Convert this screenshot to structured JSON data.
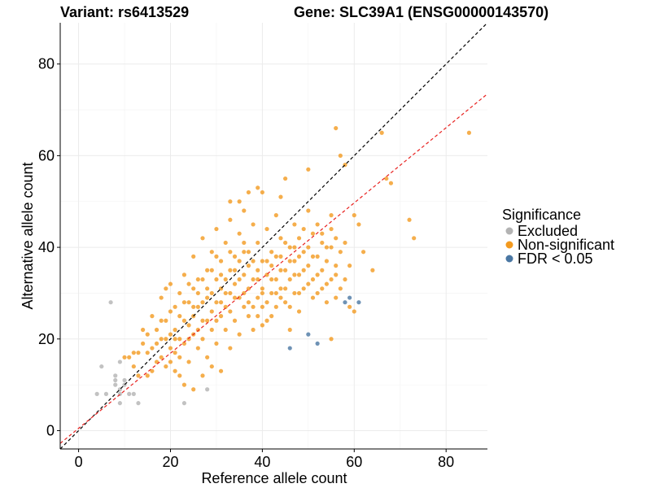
{
  "chart_data": {
    "type": "scatter",
    "title_left": "Variant: rs6413529",
    "title_right": "Gene: SLC39A1 (ENSG00000143570)",
    "xlabel": "Reference allele count",
    "ylabel": "Alternative allele count",
    "xlim": [
      -4,
      89
    ],
    "ylim": [
      -4,
      89
    ],
    "x_ticks": [
      0,
      20,
      40,
      60,
      80
    ],
    "y_ticks": [
      0,
      20,
      40,
      60,
      80
    ],
    "grid": true,
    "legend": {
      "title": "Significance",
      "placement": "right",
      "entries": [
        {
          "label": "Excluded",
          "color": "#b3b3b3"
        },
        {
          "label": "Non-significant",
          "color": "#f39a1f"
        },
        {
          "label": "FDR < 0.05",
          "color": "#4a77a3"
        }
      ]
    },
    "reference_lines": [
      {
        "name": "identity",
        "slope": 1,
        "intercept": 0,
        "color": "#000000",
        "dashed": true
      },
      {
        "name": "fit",
        "slope": 0.82,
        "intercept": 0.5,
        "color": "#e8211f",
        "dashed": true
      }
    ],
    "series": [
      {
        "name": "Excluded",
        "color": "#b3b3b3",
        "points": [
          [
            4,
            8
          ],
          [
            5,
            14
          ],
          [
            6,
            8
          ],
          [
            7,
            28
          ],
          [
            8,
            10
          ],
          [
            8,
            11
          ],
          [
            8,
            12
          ],
          [
            9,
            6
          ],
          [
            9,
            8
          ],
          [
            9,
            9
          ],
          [
            9,
            15
          ],
          [
            10,
            10
          ],
          [
            10,
            11
          ],
          [
            11,
            8
          ],
          [
            12,
            8
          ],
          [
            13,
            6
          ],
          [
            23,
            6
          ],
          [
            28,
            9
          ]
        ]
      },
      {
        "name": "FDR < 0.05",
        "color": "#4a77a3",
        "points": [
          [
            46,
            18
          ],
          [
            50,
            21
          ],
          [
            52,
            19
          ],
          [
            58,
            28
          ],
          [
            59,
            29
          ],
          [
            61,
            28
          ]
        ]
      },
      {
        "name": "Non-significant",
        "color": "#f39a1f",
        "points": [
          [
            10,
            16
          ],
          [
            11,
            16
          ],
          [
            12,
            14
          ],
          [
            13,
            12
          ],
          [
            13,
            17
          ],
          [
            14,
            19
          ],
          [
            15,
            12
          ],
          [
            15,
            21
          ],
          [
            16,
            18
          ],
          [
            16,
            13
          ],
          [
            17,
            22
          ],
          [
            18,
            16
          ],
          [
            18,
            24
          ],
          [
            18,
            29
          ],
          [
            19,
            20
          ],
          [
            19,
            14
          ],
          [
            20,
            26
          ],
          [
            20,
            32
          ],
          [
            20,
            18
          ],
          [
            21,
            22
          ],
          [
            21,
            17
          ],
          [
            22,
            30
          ],
          [
            22,
            25
          ],
          [
            22,
            12
          ],
          [
            23,
            19
          ],
          [
            23,
            34
          ],
          [
            24,
            28
          ],
          [
            24,
            23
          ],
          [
            24,
            15
          ],
          [
            25,
            31
          ],
          [
            25,
            21
          ],
          [
            25,
            38
          ],
          [
            26,
            27
          ],
          [
            26,
            18
          ],
          [
            26,
            33
          ],
          [
            27,
            24
          ],
          [
            27,
            42
          ],
          [
            27,
            20
          ],
          [
            28,
            29
          ],
          [
            28,
            35
          ],
          [
            28,
            16
          ],
          [
            29,
            26
          ],
          [
            29,
            39
          ],
          [
            29,
            22
          ],
          [
            30,
            33
          ],
          [
            30,
            28
          ],
          [
            30,
            44
          ],
          [
            30,
            19
          ],
          [
            31,
            31
          ],
          [
            31,
            25
          ],
          [
            31,
            37
          ],
          [
            32,
            27
          ],
          [
            32,
            41
          ],
          [
            32,
            22
          ],
          [
            33,
            35
          ],
          [
            33,
            30
          ],
          [
            33,
            46
          ],
          [
            33,
            18
          ],
          [
            34,
            32
          ],
          [
            34,
            24
          ],
          [
            34,
            38
          ],
          [
            35,
            29
          ],
          [
            35,
            43
          ],
          [
            35,
            21
          ],
          [
            36,
            34
          ],
          [
            36,
            27
          ],
          [
            36,
            48
          ],
          [
            36,
            39
          ],
          [
            37,
            31
          ],
          [
            37,
            25
          ],
          [
            37,
            36
          ],
          [
            38,
            33
          ],
          [
            38,
            45
          ],
          [
            38,
            22
          ],
          [
            39,
            29
          ],
          [
            39,
            41
          ],
          [
            39,
            35
          ],
          [
            40,
            37
          ],
          [
            40,
            27
          ],
          [
            40,
            52
          ],
          [
            40,
            31
          ],
          [
            41,
            34
          ],
          [
            41,
            44
          ],
          [
            41,
            24
          ],
          [
            42,
            30
          ],
          [
            42,
            39
          ],
          [
            42,
            36
          ],
          [
            43,
            33
          ],
          [
            43,
            47
          ],
          [
            43,
            27
          ],
          [
            44,
            38
          ],
          [
            44,
            31
          ],
          [
            44,
            42
          ],
          [
            45,
            35
          ],
          [
            45,
            28
          ],
          [
            45,
            55
          ],
          [
            46,
            40
          ],
          [
            46,
            33
          ],
          [
            46,
            22
          ],
          [
            47,
            37
          ],
          [
            47,
            45
          ],
          [
            47,
            30
          ],
          [
            48,
            34
          ],
          [
            48,
            42
          ],
          [
            48,
            26
          ],
          [
            49,
            39
          ],
          [
            49,
            31
          ],
          [
            50,
            36
          ],
          [
            50,
            48
          ],
          [
            50,
            57
          ],
          [
            51,
            33
          ],
          [
            51,
            43
          ],
          [
            52,
            38
          ],
          [
            52,
            30
          ],
          [
            53,
            41
          ],
          [
            53,
            35
          ],
          [
            54,
            37
          ],
          [
            54,
            32
          ],
          [
            55,
            40
          ],
          [
            55,
            44
          ],
          [
            56,
            36
          ],
          [
            56,
            34
          ],
          [
            57,
            39
          ],
          [
            58,
            41
          ],
          [
            58,
            58
          ],
          [
            59,
            36
          ],
          [
            60,
            47
          ],
          [
            62,
            39
          ],
          [
            64,
            35
          ],
          [
            66,
            65
          ],
          [
            67,
            55
          ],
          [
            68,
            54
          ],
          [
            72,
            46
          ],
          [
            73,
            42
          ],
          [
            85,
            65
          ],
          [
            19,
            31
          ],
          [
            21,
            13
          ],
          [
            23,
            10
          ],
          [
            25,
            9
          ],
          [
            27,
            12
          ],
          [
            29,
            14
          ],
          [
            31,
            13
          ],
          [
            33,
            50
          ],
          [
            35,
            50
          ],
          [
            37,
            52
          ],
          [
            39,
            53
          ],
          [
            44,
            51
          ],
          [
            55,
            20
          ],
          [
            56,
            66
          ],
          [
            57,
            60
          ],
          [
            59,
            27
          ],
          [
            60,
            26
          ],
          [
            61,
            45
          ],
          [
            14,
            22
          ],
          [
            16,
            25
          ],
          [
            17,
            19
          ],
          [
            19,
            24
          ],
          [
            20,
            21
          ],
          [
            21,
            27
          ],
          [
            22,
            20
          ],
          [
            23,
            24
          ],
          [
            24,
            20
          ],
          [
            25,
            25
          ],
          [
            26,
            22
          ],
          [
            27,
            28
          ],
          [
            28,
            24
          ],
          [
            29,
            30
          ],
          [
            30,
            24
          ],
          [
            31,
            28
          ],
          [
            32,
            33
          ],
          [
            33,
            26
          ],
          [
            34,
            29
          ],
          [
            35,
            33
          ],
          [
            36,
            30
          ],
          [
            37,
            28
          ],
          [
            38,
            37
          ],
          [
            39,
            33
          ],
          [
            40,
            30
          ],
          [
            41,
            37
          ],
          [
            42,
            33
          ],
          [
            43,
            38
          ],
          [
            44,
            35
          ],
          [
            45,
            41
          ],
          [
            46,
            37
          ],
          [
            47,
            40
          ],
          [
            48,
            38
          ],
          [
            49,
            44
          ],
          [
            50,
            40
          ],
          [
            51,
            38
          ],
          [
            52,
            45
          ],
          [
            53,
            43
          ],
          [
            54,
            40
          ],
          [
            55,
            47
          ],
          [
            56,
            42
          ],
          [
            12,
            17
          ],
          [
            15,
            17
          ],
          [
            17,
            15
          ],
          [
            18,
            20
          ],
          [
            20,
            15
          ],
          [
            21,
            20
          ],
          [
            22,
            16
          ],
          [
            23,
            28
          ],
          [
            24,
            32
          ],
          [
            25,
            27
          ],
          [
            26,
            30
          ],
          [
            27,
            33
          ],
          [
            28,
            31
          ],
          [
            29,
            35
          ],
          [
            30,
            38
          ],
          [
            31,
            34
          ],
          [
            32,
            30
          ],
          [
            33,
            39
          ],
          [
            34,
            35
          ],
          [
            35,
            37
          ],
          [
            36,
            41
          ],
          [
            37,
            39
          ],
          [
            38,
            27
          ],
          [
            39,
            25
          ],
          [
            40,
            23
          ],
          [
            41,
            28
          ],
          [
            42,
            25
          ],
          [
            43,
            30
          ],
          [
            44,
            29
          ],
          [
            45,
            31
          ],
          [
            46,
            27
          ],
          [
            47,
            34
          ],
          [
            48,
            30
          ],
          [
            49,
            35
          ],
          [
            50,
            32
          ],
          [
            51,
            29
          ],
          [
            52,
            34
          ],
          [
            53,
            31
          ],
          [
            54,
            28
          ],
          [
            55,
            33
          ],
          [
            56,
            29
          ],
          [
            57,
            31
          ],
          [
            58,
            33
          ]
        ]
      }
    ]
  }
}
